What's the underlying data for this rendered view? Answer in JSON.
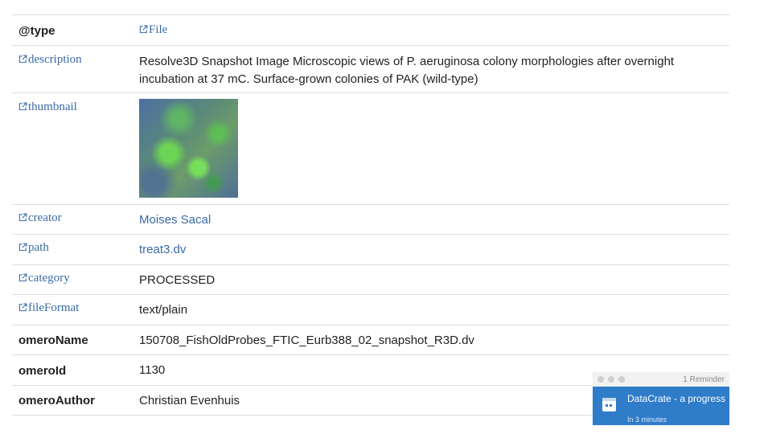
{
  "rows": [
    {
      "key": "@type",
      "value": "File"
    },
    {
      "key": "description",
      "value": "Resolve3D Snapshot Image Microscopic views of P. aeruginosa colony morphologies after overnight incubation at 37 mC. Surface-grown colonies of PAK (wild-type)"
    },
    {
      "key": "thumbnail",
      "value": ""
    },
    {
      "key": "creator",
      "value": "Moises Sacal"
    },
    {
      "key": "path",
      "value": "treat3.dv"
    },
    {
      "key": "category",
      "value": "PROCESSED"
    },
    {
      "key": "fileFormat",
      "value": "text/plain"
    },
    {
      "key": "omeroName",
      "value": "150708_FishOldProbes_FTIC_Eurb388_02_snapshot_R3D.dv"
    },
    {
      "key": "omeroId",
      "value": "1130"
    },
    {
      "key": "omeroAuthor",
      "value": "Christian Evenhuis"
    }
  ],
  "notification": {
    "count_label": "1 Reminder",
    "title": "DataCrate - a progress",
    "time": "In 3 minutes"
  },
  "colors": {
    "link": "#3a6aa6",
    "border": "#dddddd",
    "notification": "#2f7cc9"
  },
  "icons": {
    "external_link": "external-link-icon",
    "calendar": "calendar-icon"
  }
}
